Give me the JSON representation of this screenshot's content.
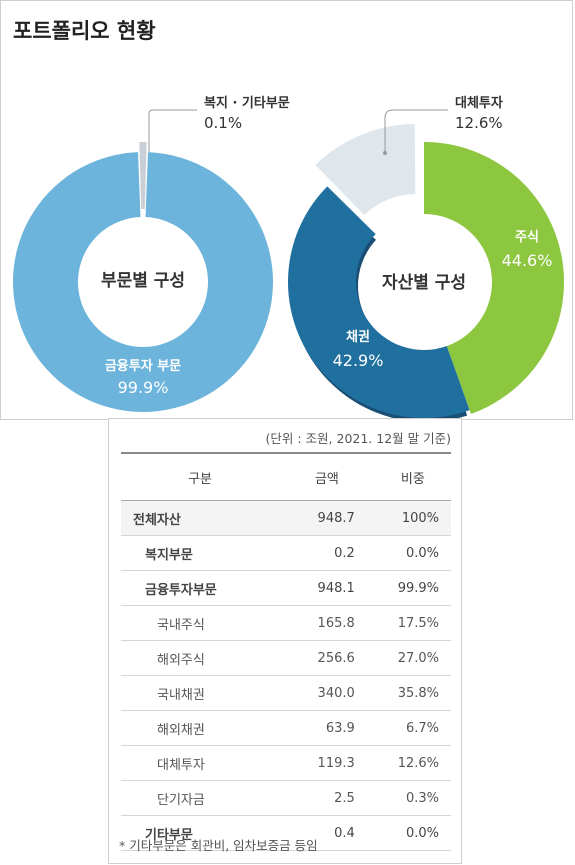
{
  "page_title": "포트폴리오 현황",
  "colors": {
    "finance": "#6cb4db",
    "welfare": "#c9cfd6",
    "alt": "#dfe6ec",
    "stock": "#8dc63f",
    "bond": "#1f6f9f",
    "shadow": "#1b4e74"
  },
  "chart_data": [
    {
      "type": "pie",
      "center_label": "부문별 구성",
      "slices": [
        {
          "name": "금융투자 부문",
          "value": 99.9,
          "label_value": "99.9%",
          "color": "#6cb4db"
        },
        {
          "name": "복지 · 기타부문",
          "value": 0.1,
          "label_value": "0.1%",
          "color": "#c9cfd6",
          "exploded": true
        }
      ]
    },
    {
      "type": "pie",
      "center_label": "자산별 구성",
      "slices": [
        {
          "name": "주식",
          "value": 44.6,
          "label_value": "44.6%",
          "color": "#8dc63f"
        },
        {
          "name": "채권",
          "value": 42.9,
          "label_value": "42.9%",
          "color": "#1f6f9f"
        },
        {
          "name": "대체투자",
          "value": 12.6,
          "label_value": "12.6%",
          "color": "#dfe6ec",
          "exploded": true
        }
      ]
    },
    {
      "type": "table",
      "unit": "(단위 : 조원, 2021. 12월 말 기준)",
      "columns": [
        "구분",
        "금액",
        "비중"
      ],
      "rows": [
        {
          "name": "전체자산",
          "amount": "948.7",
          "ratio": "100%",
          "level": 0
        },
        {
          "name": "복지부문",
          "amount": "0.2",
          "ratio": "0.0%",
          "level": 1
        },
        {
          "name": "금융투자부문",
          "amount": "948.1",
          "ratio": "99.9%",
          "level": 1
        },
        {
          "name": "국내주식",
          "amount": "165.8",
          "ratio": "17.5%",
          "level": 2
        },
        {
          "name": "해외주식",
          "amount": "256.6",
          "ratio": "27.0%",
          "level": 2
        },
        {
          "name": "국내채권",
          "amount": "340.0",
          "ratio": "35.8%",
          "level": 2
        },
        {
          "name": "해외채권",
          "amount": "63.9",
          "ratio": "6.7%",
          "level": 2
        },
        {
          "name": "대체투자",
          "amount": "119.3",
          "ratio": "12.6%",
          "level": 2
        },
        {
          "name": "단기자금",
          "amount": "2.5",
          "ratio": "0.3%",
          "level": 2
        },
        {
          "name": "기타부문",
          "amount": "0.4",
          "ratio": "0.0%",
          "level": 1
        }
      ],
      "footnote": "* 기타부문은 회관비, 임차보증금 등임"
    }
  ]
}
